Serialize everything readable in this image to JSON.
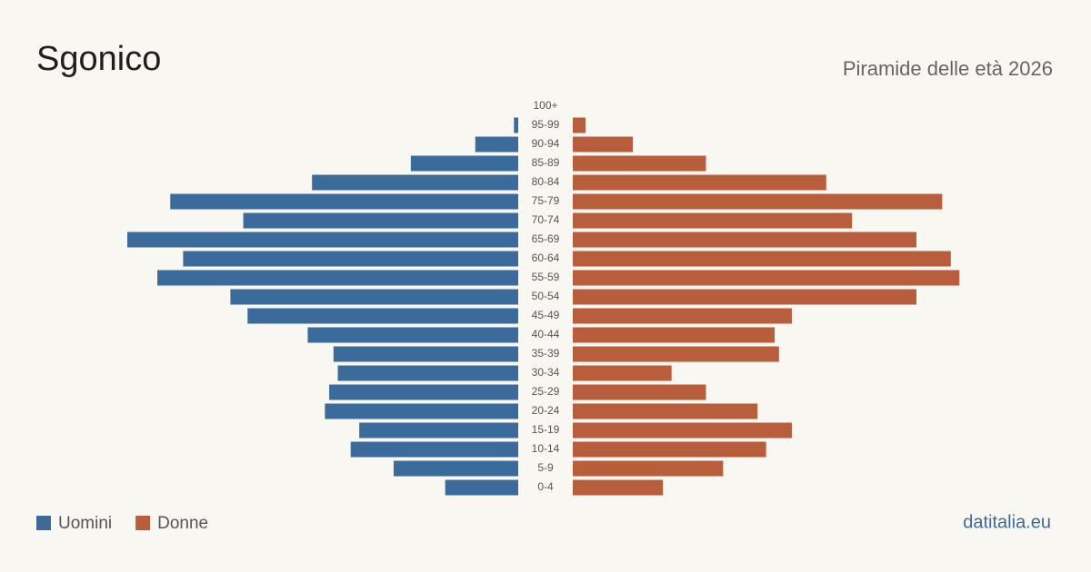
{
  "chart_data": {
    "type": "pyramid",
    "title": "Sgonico",
    "subtitle": "Piramide delle età 2026",
    "source": "datitalia.eu",
    "categories": [
      "100+",
      "95-99",
      "90-94",
      "85-89",
      "80-84",
      "75-79",
      "70-74",
      "65-69",
      "60-64",
      "55-59",
      "50-54",
      "45-49",
      "40-44",
      "35-39",
      "30-34",
      "25-29",
      "20-24",
      "15-19",
      "10-14",
      "5-9",
      "0-4"
    ],
    "series": [
      {
        "name": "Uomini",
        "color": "#3b6b9b",
        "values": [
          0,
          1,
          10,
          25,
          48,
          81,
          64,
          91,
          78,
          84,
          67,
          63,
          49,
          43,
          42,
          44,
          45,
          37,
          39,
          29,
          17
        ]
      },
      {
        "name": "Donne",
        "color": "#b95e3d",
        "values": [
          0,
          3,
          14,
          31,
          59,
          86,
          65,
          80,
          88,
          90,
          80,
          51,
          47,
          48,
          23,
          31,
          43,
          51,
          45,
          35,
          21
        ]
      }
    ]
  }
}
